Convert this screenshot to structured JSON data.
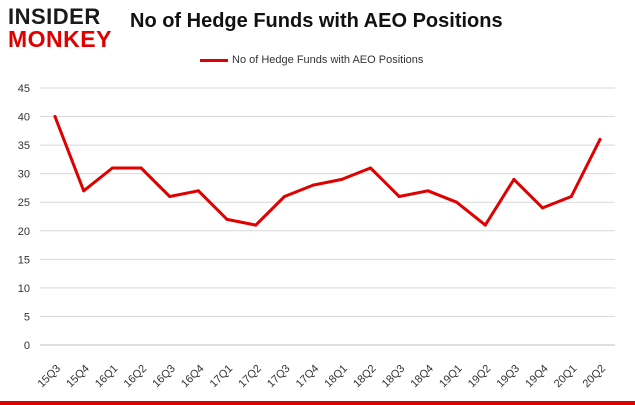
{
  "logo": {
    "line1": "INSIDER",
    "line2": "MONKEY"
  },
  "chart_data": {
    "type": "line",
    "title": "No of Hedge Funds with AEO Positions",
    "xlabel": "",
    "ylabel": "",
    "categories": [
      "15Q3",
      "15Q4",
      "16Q1",
      "16Q2",
      "16Q3",
      "16Q4",
      "17Q1",
      "17Q2",
      "17Q3",
      "17Q4",
      "18Q1",
      "18Q2",
      "18Q3",
      "18Q4",
      "19Q1",
      "19Q2",
      "19Q3",
      "19Q4",
      "20Q1",
      "20Q2"
    ],
    "series": [
      {
        "name": "No of Hedge Funds with AEO Positions",
        "values": [
          40,
          27,
          31,
          31,
          26,
          27,
          22,
          21,
          26,
          28,
          29,
          31,
          26,
          27,
          25,
          21,
          29,
          24,
          26,
          36
        ]
      }
    ],
    "ylim": [
      0,
      45
    ],
    "yticks": [
      0,
      5,
      10,
      15,
      20,
      25,
      30,
      35,
      40,
      45
    ],
    "grid": "horizontal",
    "legend": "top-center",
    "line_color": "#e00000"
  }
}
